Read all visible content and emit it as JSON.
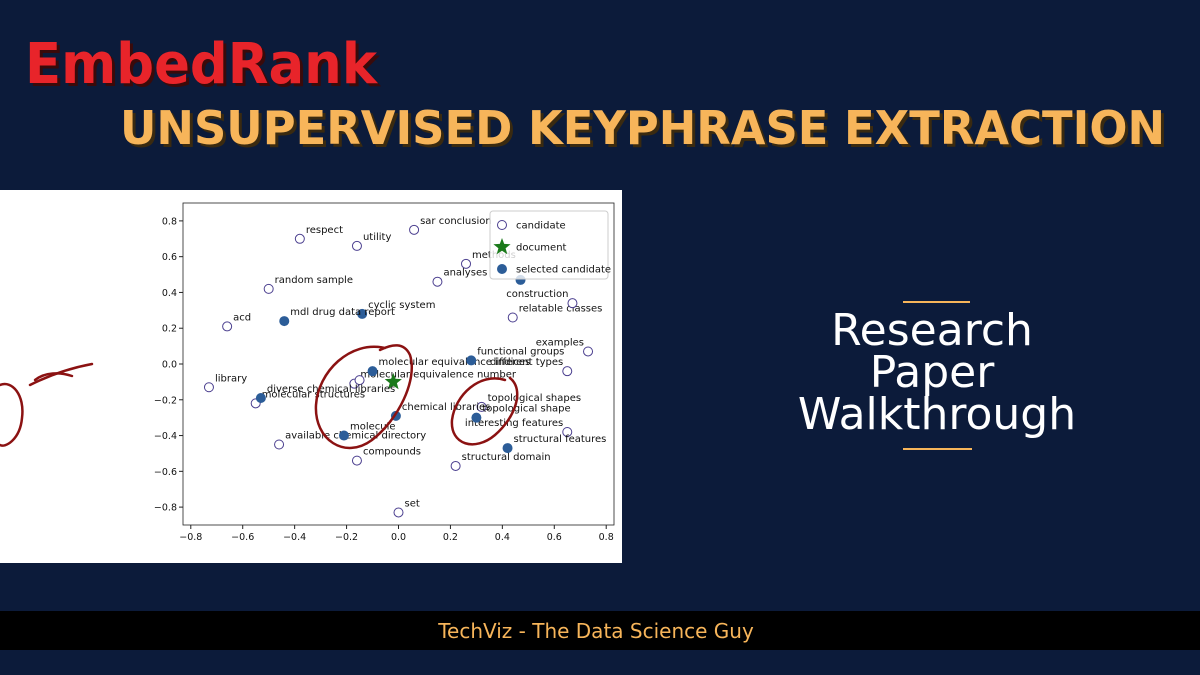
{
  "header": {
    "title": "EmbedRank",
    "subtitle": "UNSUPERVISED KEYPHRASE EXTRACTION"
  },
  "sidebar": {
    "lines": [
      "Research",
      "Paper",
      "Walkthrough"
    ]
  },
  "footer": {
    "text": "TechViz - The Data Science Guy"
  },
  "chart_data": {
    "type": "scatter",
    "legend": "upper right",
    "xlim": [
      -0.83,
      0.83
    ],
    "ylim": [
      -0.9,
      0.9
    ],
    "xticks": [
      {
        "value": -0.8,
        "label": "−0.8"
      },
      {
        "value": -0.6,
        "label": "−0.6"
      },
      {
        "value": -0.4,
        "label": "−0.4"
      },
      {
        "value": -0.2,
        "label": "−0.2"
      },
      {
        "value": 0,
        "label": "0.0"
      },
      0.2,
      0.4,
      0.6,
      0.8
    ],
    "yticks": [
      {
        "value": -0.8,
        "label": "−0.8"
      },
      {
        "value": -0.6,
        "label": "−0.6"
      },
      {
        "value": -0.4,
        "label": "−0.4"
      },
      {
        "value": -0.2,
        "label": "−0.2"
      },
      {
        "value": 0,
        "label": "0.0"
      },
      0.2,
      0.4,
      0.6,
      0.8
    ],
    "series": [
      {
        "name": "candidate",
        "color": "#4b3f8f",
        "marker": "hollow-circle",
        "x": [
          -0.38,
          -0.16,
          0.06,
          0.26,
          0.15,
          -0.5,
          0.44,
          0.67,
          -0.66,
          0.73,
          0.65,
          -0.73,
          -0.17,
          -0.15,
          -0.55,
          0.32,
          0.65,
          -0.46,
          -0.16,
          0.22,
          0.0
        ],
        "y": [
          0.7,
          0.66,
          0.75,
          0.56,
          0.46,
          0.42,
          0.26,
          0.34,
          0.21,
          0.07,
          -0.04,
          -0.13,
          -0.11,
          -0.09,
          -0.22,
          -0.24,
          -0.38,
          -0.45,
          -0.54,
          -0.57,
          -0.83
        ],
        "labels": [
          "respect",
          "utility",
          "sar conclusion",
          "methods",
          "analyses",
          "random sample",
          "relatable classes",
          "construction",
          "acd",
          "examples",
          "different types",
          "library",
          "molecular equivalence number",
          null,
          "molecular structures",
          "topological shapes",
          "interesting features",
          "available chemical directory",
          "compounds",
          "structural domain",
          "set"
        ]
      },
      {
        "name": "document",
        "color": "#1b7a1b",
        "marker": "star",
        "x": [
          -0.02
        ],
        "y": [
          -0.1
        ]
      },
      {
        "name": "selected candidate",
        "color": "#2c5d98",
        "marker": "filled-circle",
        "x": [
          -0.14,
          -0.44,
          -0.1,
          0.28,
          -0.53,
          -0.01,
          -0.21,
          0.3,
          0.42,
          0.47
        ],
        "y": [
          0.28,
          0.24,
          -0.04,
          0.02,
          -0.19,
          -0.29,
          -0.4,
          -0.3,
          -0.47,
          0.47
        ],
        "labels": [
          "cyclic system",
          "mdl drug data report",
          "molecular equivalence indices",
          "functional groups",
          "diverse chemical libraries",
          "chemical libraries",
          "molecule",
          "topological shape",
          "structural features",
          null
        ]
      }
    ]
  }
}
